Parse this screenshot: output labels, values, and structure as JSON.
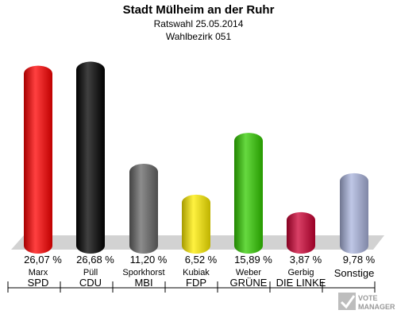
{
  "chart_data": {
    "type": "bar",
    "title": "Stadt Mülheim an der Ruhr",
    "subtitle": "Ratswahl 25.05.2014",
    "subtitle2": "Wahlbezirk 051",
    "categories": [
      "SPD",
      "CDU",
      "MBI",
      "FDP",
      "GRÜNE",
      "DIE LINKE",
      "Sonstige"
    ],
    "candidates": [
      "Marx",
      "Püll",
      "Sporkhorst",
      "Kubiak",
      "Weber",
      "Gerbig",
      ""
    ],
    "values": [
      26.07,
      26.68,
      11.2,
      6.52,
      15.89,
      3.87,
      9.78
    ],
    "value_labels": [
      "26,07 %",
      "26,68 %",
      "11,20 %",
      "6,52 %",
      "15,89 %",
      "3,87 %",
      "9,78 %"
    ],
    "colors": [
      "#ff0000",
      "#000000",
      "#666666",
      "#ffee00",
      "#33cc00",
      "#cc0033",
      "#aab4dd"
    ],
    "ylim": [
      0,
      30
    ],
    "grid": false,
    "legend": "none"
  },
  "watermark": {
    "line1": "VOTE",
    "line2": "MANAGER"
  }
}
